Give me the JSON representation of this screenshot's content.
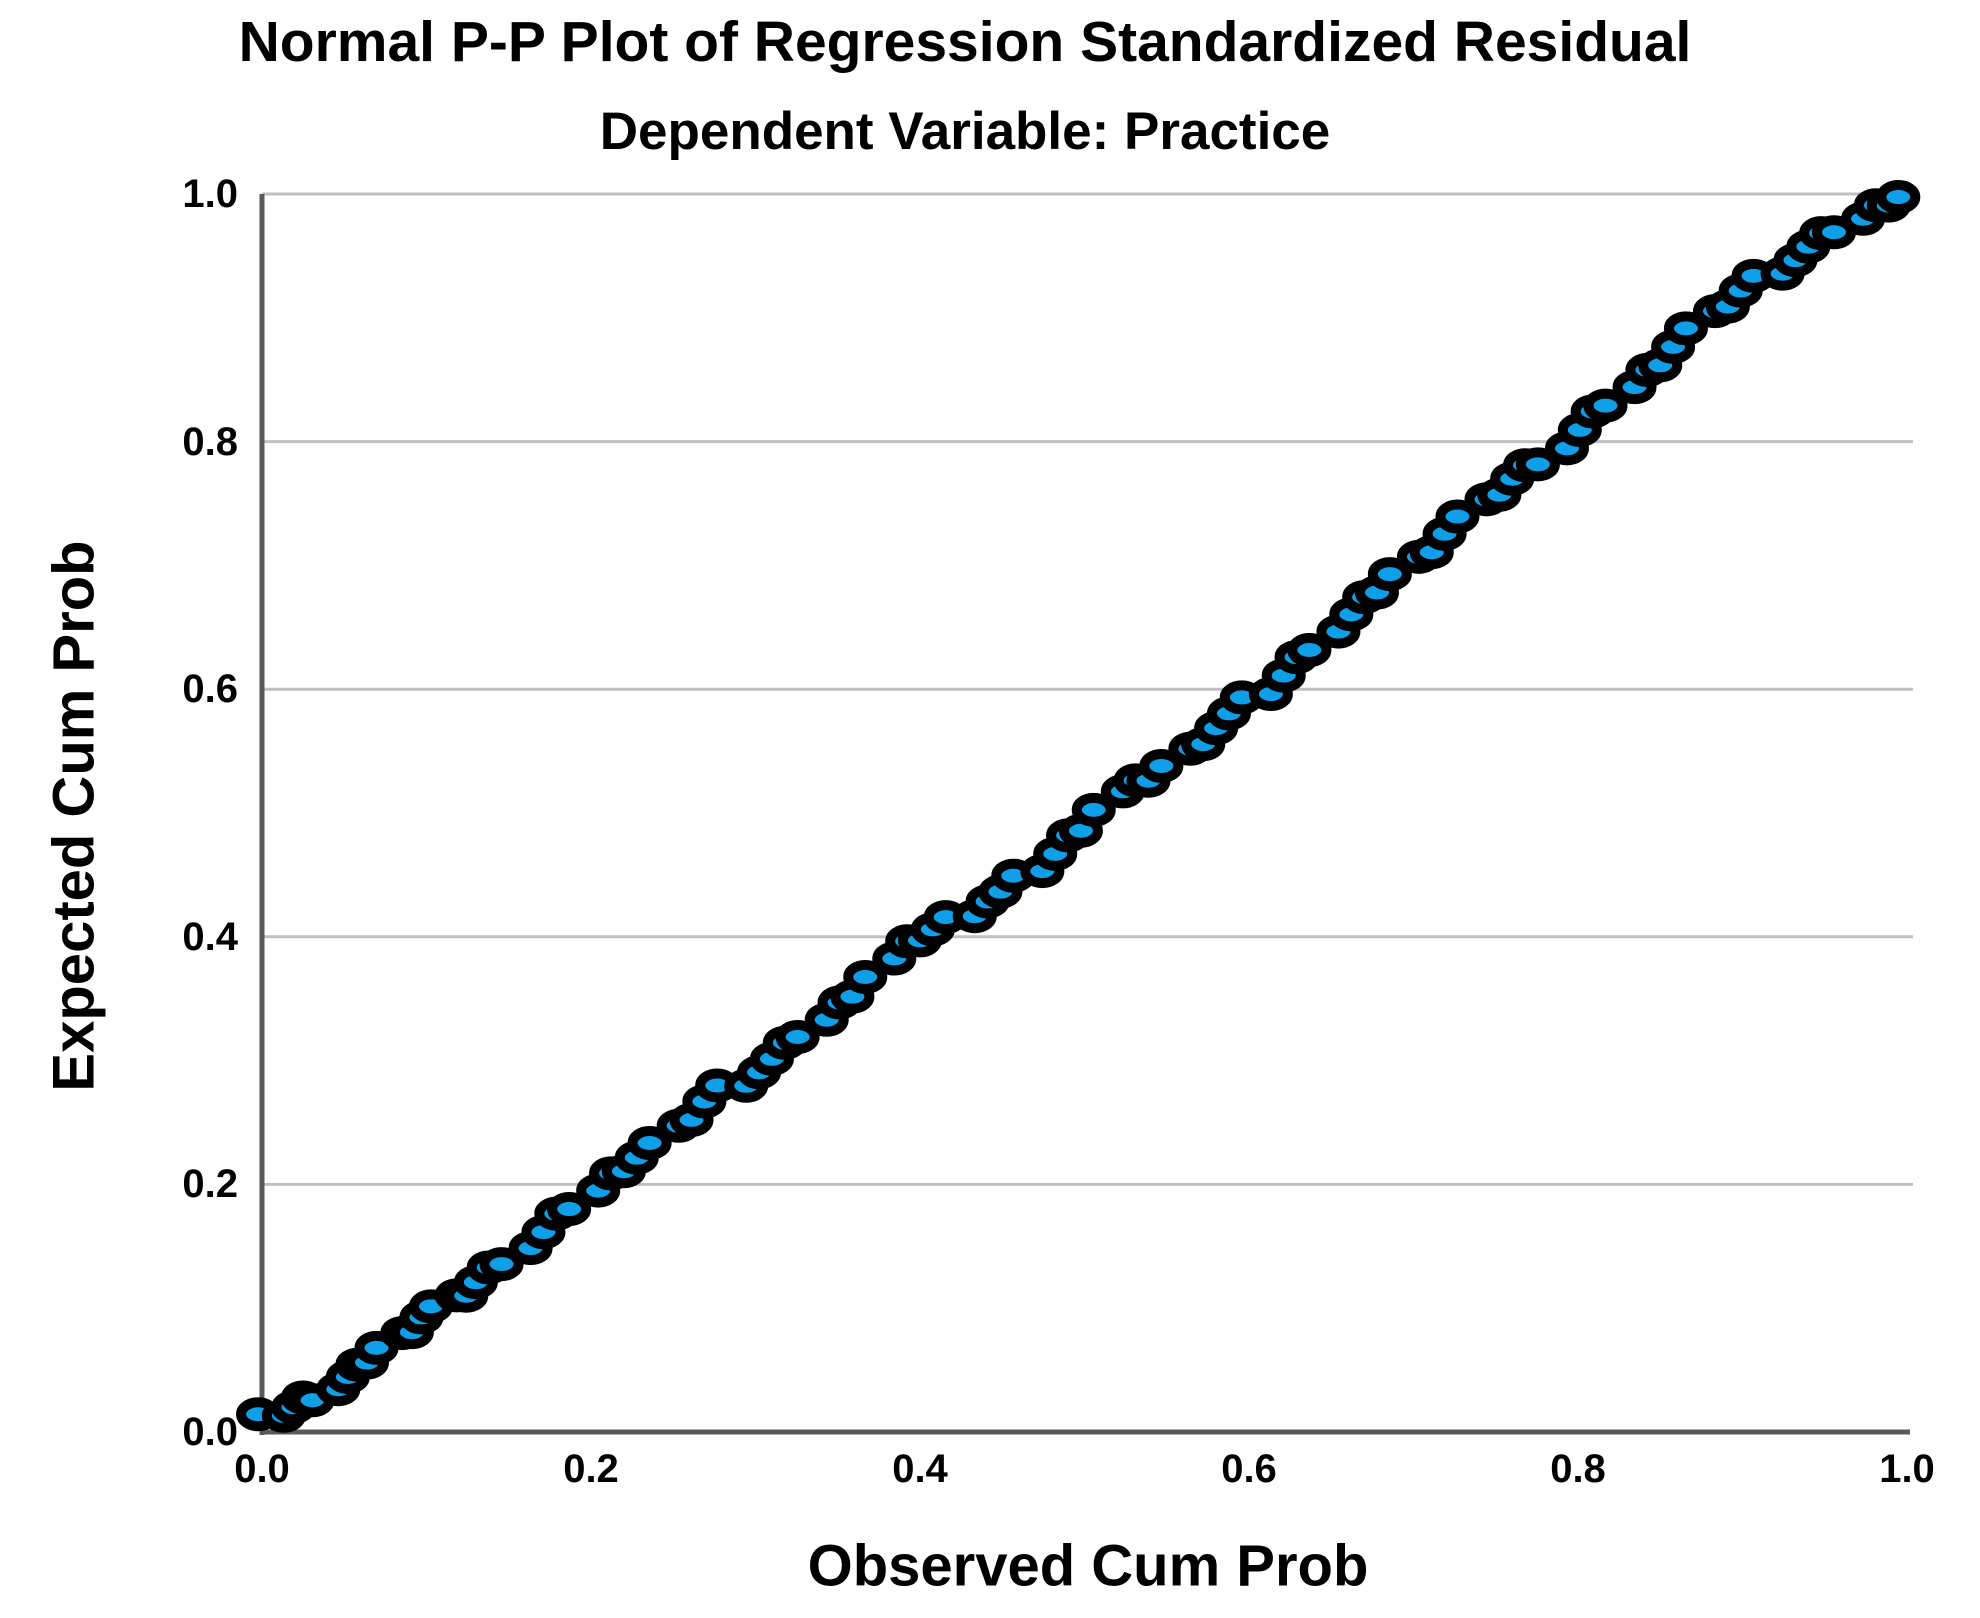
{
  "title": "Normal P-P Plot of Regression Standardized Residual",
  "subtitle": "Dependent Variable: Practice",
  "chart_data": {
    "type": "scatter",
    "title": "Normal P-P Plot of Regression Standardized Residual",
    "subtitle": "Dependent Variable: Practice",
    "xlabel": "Observed Cum Prob",
    "ylabel": "Expected Cum Prob",
    "xlim": [
      0.0,
      1.0
    ],
    "ylim": [
      0.0,
      1.0
    ],
    "x_tick_labels": [
      "0.0",
      "0.2",
      "0.4",
      "0.6",
      "0.8",
      "1.0"
    ],
    "x_tick_values": [
      0.0,
      0.2,
      0.4,
      0.6,
      0.8,
      1.0
    ],
    "y_tick_labels": [
      "0.0",
      "0.2",
      "0.4",
      "0.6",
      "0.8",
      "1.0"
    ],
    "y_tick_values": [
      0.0,
      0.2,
      0.4,
      0.6,
      0.8,
      1.0
    ],
    "grid": "horizontal",
    "gridline_values": [
      0.2,
      0.4,
      0.6,
      0.8,
      1.0
    ],
    "legend": "none",
    "marker": {
      "shape": "circle",
      "fill": "#0f9fe8",
      "stroke": "#000000"
    },
    "colors": {
      "background": "#ffffff",
      "text": "#000000",
      "gridline": "#c0c0c0",
      "axis": "#595959",
      "point_fill": "#0f9fe8",
      "point_stroke": "#000000"
    },
    "points": [
      [
        0.002,
        0.01
      ],
      [
        0.01,
        0.016
      ],
      [
        0.018,
        0.02
      ],
      [
        0.026,
        0.025
      ],
      [
        0.034,
        0.03
      ],
      [
        0.042,
        0.036
      ],
      [
        0.05,
        0.043
      ],
      [
        0.058,
        0.05
      ],
      [
        0.066,
        0.059
      ],
      [
        0.074,
        0.068
      ],
      [
        0.082,
        0.077
      ],
      [
        0.09,
        0.085
      ],
      [
        0.098,
        0.094
      ],
      [
        0.106,
        0.1
      ],
      [
        0.114,
        0.106
      ],
      [
        0.122,
        0.113
      ],
      [
        0.13,
        0.121
      ],
      [
        0.14,
        0.13
      ],
      [
        0.15,
        0.14
      ],
      [
        0.16,
        0.15
      ],
      [
        0.17,
        0.16
      ],
      [
        0.18,
        0.172
      ],
      [
        0.19,
        0.183
      ],
      [
        0.2,
        0.195
      ],
      [
        0.21,
        0.206
      ],
      [
        0.22,
        0.215
      ],
      [
        0.23,
        0.223
      ],
      [
        0.24,
        0.232
      ],
      [
        0.25,
        0.243
      ],
      [
        0.26,
        0.255
      ],
      [
        0.27,
        0.267
      ],
      [
        0.28,
        0.277
      ],
      [
        0.29,
        0.284
      ],
      [
        0.3,
        0.292
      ],
      [
        0.31,
        0.3
      ],
      [
        0.32,
        0.31
      ],
      [
        0.33,
        0.322
      ],
      [
        0.34,
        0.333
      ],
      [
        0.35,
        0.344
      ],
      [
        0.36,
        0.356
      ],
      [
        0.37,
        0.369
      ],
      [
        0.38,
        0.381
      ],
      [
        0.39,
        0.392
      ],
      [
        0.4,
        0.4
      ],
      [
        0.41,
        0.406
      ],
      [
        0.42,
        0.413
      ],
      [
        0.43,
        0.421
      ],
      [
        0.44,
        0.43
      ],
      [
        0.45,
        0.435
      ],
      [
        0.46,
        0.445
      ],
      [
        0.47,
        0.456
      ],
      [
        0.48,
        0.467
      ],
      [
        0.49,
        0.479
      ],
      [
        0.5,
        0.49
      ],
      [
        0.51,
        0.504
      ],
      [
        0.52,
        0.516
      ],
      [
        0.53,
        0.522
      ],
      [
        0.54,
        0.529
      ],
      [
        0.55,
        0.538
      ],
      [
        0.56,
        0.549
      ],
      [
        0.57,
        0.56
      ],
      [
        0.58,
        0.57
      ],
      [
        0.59,
        0.579
      ],
      [
        0.6,
        0.589
      ],
      [
        0.61,
        0.599
      ],
      [
        0.62,
        0.611
      ],
      [
        0.63,
        0.623
      ],
      [
        0.64,
        0.636
      ],
      [
        0.65,
        0.648
      ],
      [
        0.66,
        0.659
      ],
      [
        0.67,
        0.67
      ],
      [
        0.68,
        0.681
      ],
      [
        0.69,
        0.693
      ],
      [
        0.7,
        0.704
      ],
      [
        0.71,
        0.715
      ],
      [
        0.72,
        0.727
      ],
      [
        0.73,
        0.738
      ],
      [
        0.74,
        0.749
      ],
      [
        0.75,
        0.76
      ],
      [
        0.76,
        0.77
      ],
      [
        0.77,
        0.778
      ],
      [
        0.78,
        0.786
      ],
      [
        0.79,
        0.796
      ],
      [
        0.8,
        0.808
      ],
      [
        0.81,
        0.82
      ],
      [
        0.82,
        0.832
      ],
      [
        0.83,
        0.844
      ],
      [
        0.84,
        0.855
      ],
      [
        0.85,
        0.866
      ],
      [
        0.86,
        0.878
      ],
      [
        0.87,
        0.89
      ],
      [
        0.88,
        0.901
      ],
      [
        0.89,
        0.912
      ],
      [
        0.9,
        0.922
      ],
      [
        0.91,
        0.931
      ],
      [
        0.92,
        0.94
      ],
      [
        0.93,
        0.948
      ],
      [
        0.94,
        0.956
      ],
      [
        0.95,
        0.964
      ],
      [
        0.96,
        0.972
      ],
      [
        0.97,
        0.98
      ],
      [
        0.98,
        0.988
      ],
      [
        0.99,
        0.995
      ],
      [
        0.998,
        0.999
      ]
    ]
  }
}
